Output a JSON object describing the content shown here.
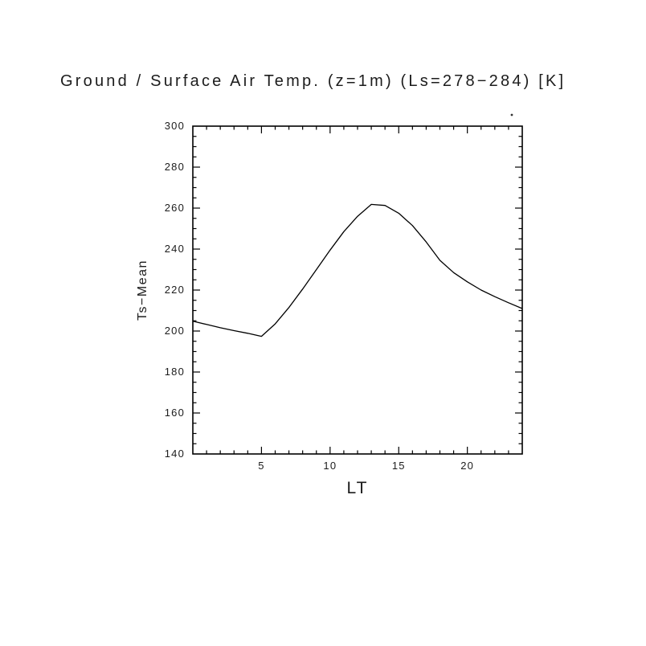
{
  "chart_data": {
    "type": "line",
    "title": "Ground / Surface Air Temp. (z=1m) (Ls=278−284) [K]",
    "xlabel": "LT",
    "ylabel": "Ts−Mean",
    "xlim": [
      0,
      24
    ],
    "ylim": [
      140,
      300
    ],
    "xticks": [
      5,
      10,
      15,
      20
    ],
    "yticks": [
      140,
      160,
      180,
      200,
      220,
      240,
      260,
      280,
      300
    ],
    "x_minor_step": 1,
    "y_minor_step": 5,
    "grid": false,
    "legend": "none",
    "line_color": "#000000",
    "background": "#ffffff",
    "series": [
      {
        "name": "Ts-Mean",
        "x": [
          0,
          1,
          2,
          3,
          4,
          5,
          6,
          7,
          8,
          9,
          10,
          11,
          12,
          13,
          14,
          15,
          16,
          17,
          18,
          19,
          20,
          21,
          22,
          23,
          24
        ],
        "values": [
          204.8,
          203.2,
          201.6,
          200.2,
          198.9,
          197.4,
          203.5,
          211.5,
          220.5,
          230.0,
          239.5,
          248.5,
          256.0,
          261.8,
          261.3,
          257.5,
          251.5,
          243.5,
          234.5,
          228.5,
          224.0,
          220.0,
          216.8,
          213.8,
          211.0
        ]
      }
    ]
  }
}
